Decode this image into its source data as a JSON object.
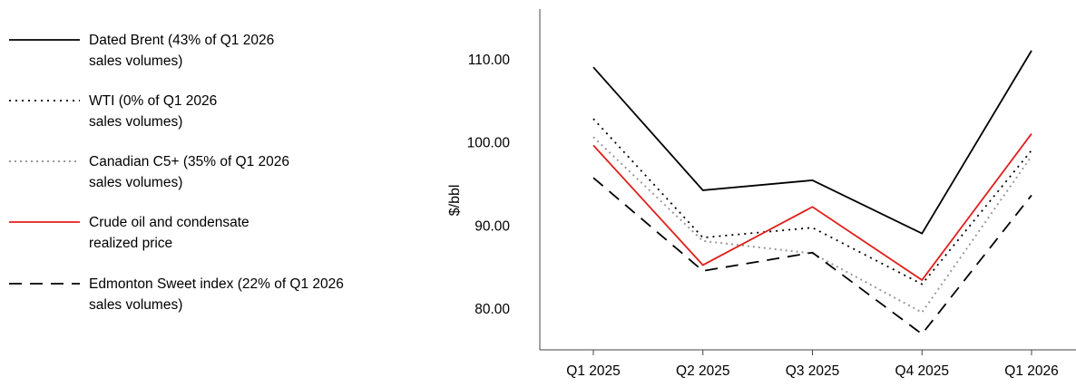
{
  "chart_data": {
    "type": "line",
    "categories": [
      "Q1 2025",
      "Q2 2025",
      "Q3 2025",
      "Q4 2025",
      "Q1 2026"
    ],
    "ylabel": "$/bbl",
    "ylim": [
      75,
      116
    ],
    "yticks": [
      "80.00",
      "90.00",
      "100.00",
      "110.00"
    ],
    "ytick_values": [
      80,
      90,
      100,
      110
    ],
    "grid": false,
    "legend_position": "left",
    "series": [
      {
        "name": "Dated Brent (43% of Q1 2026\nsales volumes)",
        "values": [
          109.0,
          94.2,
          95.4,
          89.0,
          111.0
        ],
        "color": "#000000",
        "dash": "solid"
      },
      {
        "name": "WTI (0% of Q1 2026\nsales volumes)",
        "values": [
          102.8,
          88.5,
          89.7,
          82.9,
          99.0
        ],
        "color": "#000000",
        "dash": "dotted"
      },
      {
        "name": "Canadian C5+ (35% of Q1 2026\nsales volumes)",
        "values": [
          100.6,
          88.1,
          86.6,
          79.5,
          98.3
        ],
        "color": "#9a9a9a",
        "dash": "dotted"
      },
      {
        "name": "Crude oil and condensate\nrealized price",
        "values": [
          99.6,
          85.2,
          92.2,
          83.4,
          101.0
        ],
        "color": "#e0201c",
        "dash": "solid"
      },
      {
        "name": "Edmonton Sweet index (22% of Q1 2026\nsales volumes)",
        "values": [
          95.7,
          84.5,
          86.7,
          76.9,
          93.6
        ],
        "color": "#000000",
        "dash": "dashed"
      }
    ]
  }
}
